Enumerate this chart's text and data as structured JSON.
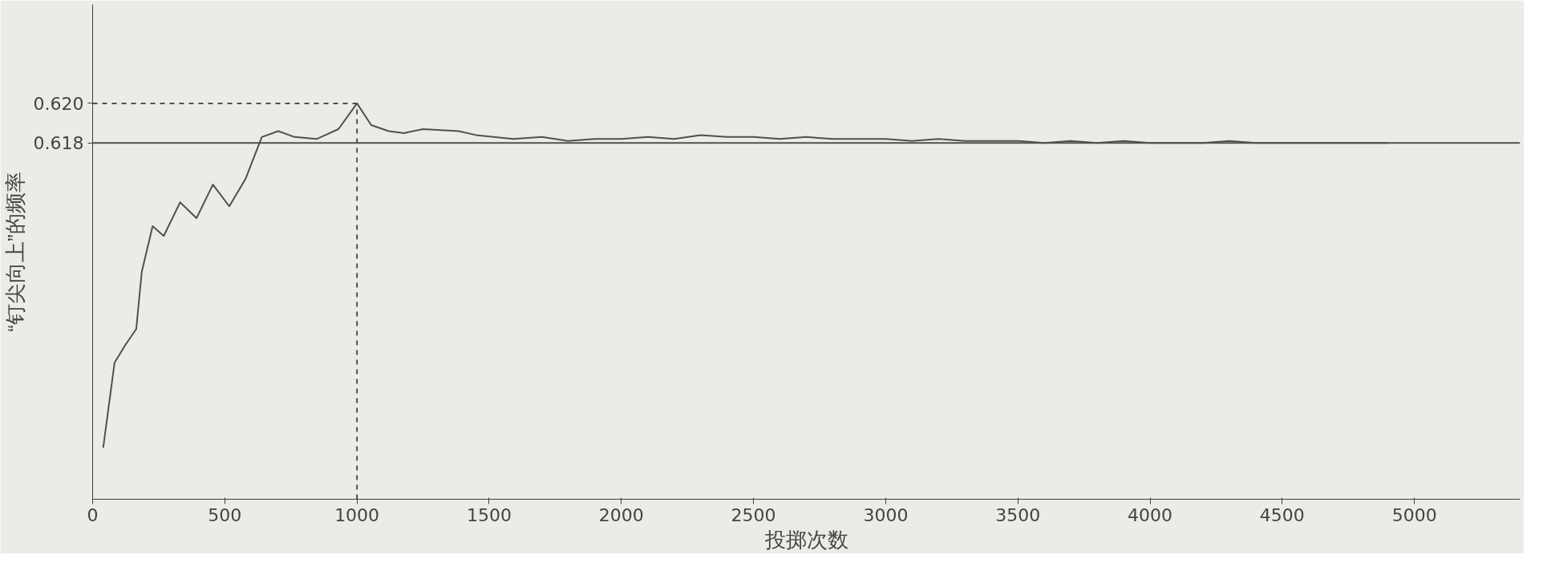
{
  "chart_data": {
    "type": "line",
    "ylabel": "“钉尖向上”的频率",
    "xlabel": "投掷次数",
    "xlim": [
      0,
      5400
    ],
    "xticks": [
      0,
      500,
      1000,
      1500,
      2000,
      2500,
      3000,
      3500,
      4000,
      4500,
      5000
    ],
    "ylim": [
      0.6,
      0.625
    ],
    "yticks": [
      0.618,
      {
        "value": 0.62,
        "label": "0.620"
      }
    ],
    "grid": false,
    "marker": "none",
    "line_style": "solid",
    "series": [
      {
        "color": "#505050",
        "x": [
          40,
          83,
          124,
          165,
          186,
          227,
          269,
          331,
          393,
          455,
          517,
          579,
          640,
          702,
          764,
          847,
          930,
          1000,
          1054,
          1120,
          1178,
          1250,
          1384,
          1450,
          1591,
          1700,
          1798,
          1900,
          2000,
          2100,
          2200,
          2300,
          2400,
          2500,
          2600,
          2700,
          2800,
          2900,
          3000,
          3100,
          3200,
          3300,
          3400,
          3500,
          3600,
          3700,
          3800,
          3900,
          4000,
          4100,
          4200,
          4300,
          4400,
          4500,
          4600,
          4700,
          4800,
          4900
        ],
        "values": [
          0.6026,
          0.6069,
          0.6078,
          0.6086,
          0.6115,
          0.6138,
          0.6133,
          0.615,
          0.6142,
          0.6159,
          0.6148,
          0.6162,
          0.6183,
          0.6186,
          0.6183,
          0.6182,
          0.6187,
          0.62,
          0.6189,
          0.6186,
          0.6185,
          0.6187,
          0.6186,
          0.6184,
          0.6182,
          0.6183,
          0.6181,
          0.6182,
          0.6182,
          0.6183,
          0.6182,
          0.6184,
          0.6183,
          0.6183,
          0.6182,
          0.6183,
          0.6182,
          0.6182,
          0.6182,
          0.6181,
          0.6182,
          0.6181,
          0.6181,
          0.6181,
          0.618,
          0.6181,
          0.618,
          0.6181,
          0.618,
          0.618,
          0.618,
          0.6181,
          0.618,
          0.618,
          0.618,
          0.618,
          0.618,
          0.618
        ]
      }
    ],
    "ref_lines": [
      {
        "axis": "y",
        "value": 0.618,
        "color": "#505050",
        "line_style": "solid"
      },
      {
        "axis": "y",
        "value": 0.62,
        "color": "#505050",
        "line_style": "dashed"
      },
      {
        "axis": "x",
        "value": 1000,
        "color": "#505050",
        "line_style": "dashed"
      }
    ]
  }
}
